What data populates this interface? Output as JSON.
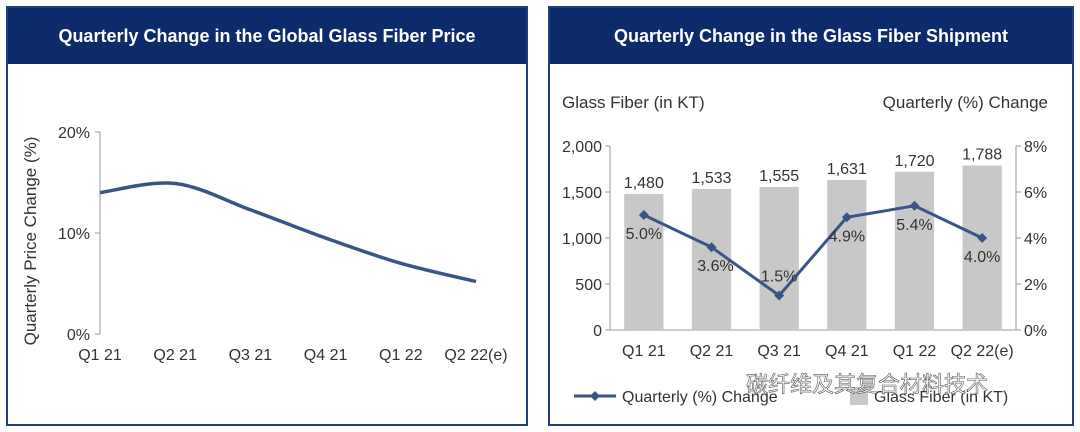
{
  "chart_data": [
    {
      "type": "line",
      "title": "Quarterly Change in the Global Glass Fiber Price",
      "ylabel": "Quarterly Price Change (%)",
      "xlabel": "",
      "categories": [
        "Q1 21",
        "Q2 21",
        "Q3 21",
        "Q4 21",
        "Q1 22",
        "Q2 22(e)"
      ],
      "series": [
        {
          "values": [
            14.0,
            14.9,
            12.3,
            9.5,
            7.0,
            5.2
          ],
          "color": "#3a5585"
        }
      ],
      "ylim": [
        0,
        20
      ],
      "yticks": [
        "0%",
        "10%",
        "20%"
      ],
      "grid": false
    },
    {
      "type": "bar",
      "title": "Quarterly Change in the Glass Fiber Shipment",
      "ylabel": "Glass Fiber (in KT)",
      "y2label": "Quarterly (%) Change",
      "categories": [
        "Q1 21",
        "Q2 21",
        "Q3 21",
        "Q4 21",
        "Q1 22",
        "Q2 22(e)"
      ],
      "series": [
        {
          "name": "Glass Fiber (in KT)",
          "type": "bar",
          "axis": "left",
          "values": [
            1480,
            1533,
            1555,
            1631,
            1720,
            1788
          ],
          "labels": [
            "1,480",
            "1,533",
            "1,555",
            "1,631",
            "1,720",
            "1,788"
          ],
          "color": "#c8c8c8"
        },
        {
          "name": "Quarterly (%) Change",
          "type": "line",
          "axis": "right",
          "values": [
            5.0,
            3.6,
            1.5,
            4.9,
            5.4,
            4.0
          ],
          "labels": [
            "5.0%",
            "3.6%",
            "1.5%",
            "4.9%",
            "5.4%",
            "4.0%"
          ],
          "color": "#3a5585"
        }
      ],
      "ylim": [
        0,
        2000
      ],
      "yticks": [
        "0",
        "500",
        "1,000",
        "1,500",
        "2,000"
      ],
      "y2lim": [
        0,
        8
      ],
      "y2ticks": [
        "0%",
        "2%",
        "4%",
        "6%",
        "8%"
      ],
      "legend": {
        "placement": "bottom",
        "entries": [
          "Quarterly (%) Change",
          "Glass Fiber (in KT)"
        ]
      },
      "grid": false
    }
  ],
  "watermark": {
    "text": "碳纤维及其复合材料技术"
  },
  "colors": {
    "header": "#0d2a6b",
    "line": "#3a5585",
    "bar": "#c8c8c8",
    "axis": "#999999"
  }
}
